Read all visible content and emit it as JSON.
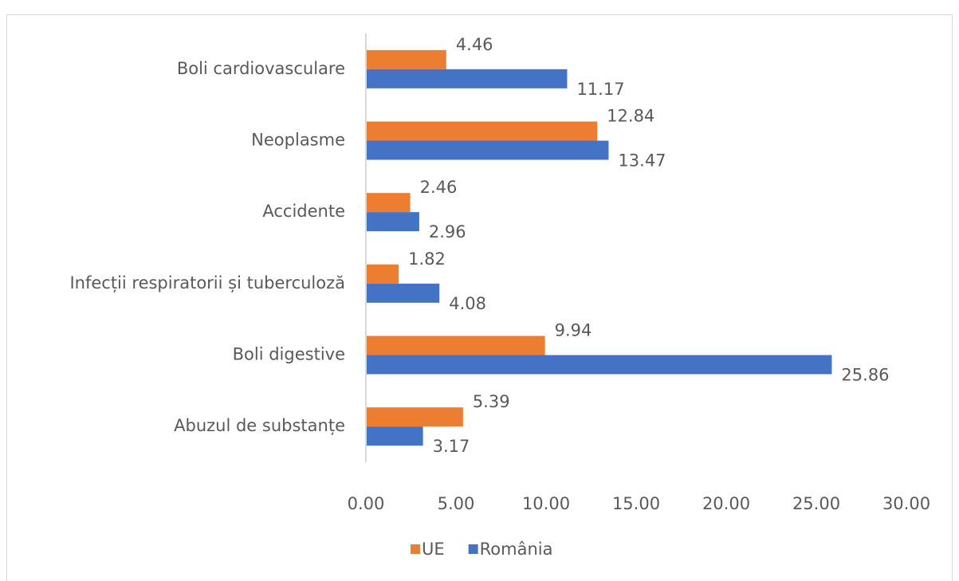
{
  "chart_data": {
    "type": "bar",
    "orientation": "horizontal",
    "categories": [
      "Boli cardiovasculare",
      "Neoplasme",
      "Accidente",
      "Infecții respiratorii și tuberculoză",
      "Boli digestive",
      "Abuzul de substanțe"
    ],
    "series": [
      {
        "name": "UE",
        "color": "#ed7d31",
        "values": [
          4.46,
          12.84,
          2.46,
          1.82,
          9.94,
          5.39
        ]
      },
      {
        "name": "România",
        "color": "#4472c4",
        "values": [
          11.17,
          13.47,
          2.96,
          4.08,
          25.86,
          3.17
        ]
      }
    ],
    "xlim": [
      0,
      30
    ],
    "xticks": [
      {
        "value": 0,
        "label": "0.00"
      },
      {
        "value": 5,
        "label": "5.00"
      },
      {
        "value": 10,
        "label": "10.00"
      },
      {
        "value": 15,
        "label": "15.00"
      },
      {
        "value": 20,
        "label": "20.00"
      },
      {
        "value": 25,
        "label": "25.00"
      },
      {
        "value": 30,
        "label": "30.00"
      }
    ],
    "grid": false,
    "legend": "bottom"
  }
}
